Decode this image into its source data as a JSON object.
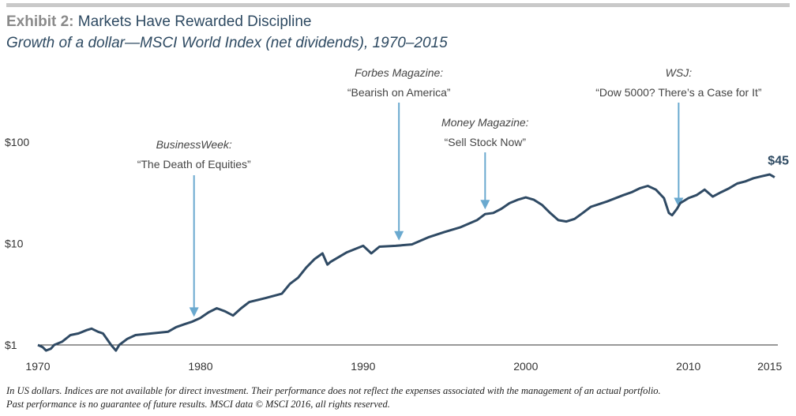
{
  "header": {
    "exhibit_label": "Exhibit 2:",
    "title": "Markets Have Rewarded Discipline",
    "subtitle": "Growth of a dollar—MSCI World Index (net dividends), 1970–2015"
  },
  "footnotes": [
    "In US dollars. Indices are not available for direct investment. Their performance does not reflect the expenses associated with the management of an actual portfolio.",
    "Past performance is no guarantee of future results. MSCI data © MSCI 2016, all rights reserved."
  ],
  "colors": {
    "line": "#2f4a64",
    "arrow": "#6aa9cf",
    "axis": "#333333",
    "endlabel": "#2e4a62"
  },
  "chart_data": {
    "type": "line",
    "title": "Growth of a dollar—MSCI World Index (net dividends), 1970–2015",
    "xlabel": "",
    "ylabel": "",
    "y_scale": "log",
    "ylim": [
      1,
      100
    ],
    "xlim": [
      1970,
      2015.5
    ],
    "x_ticks": [
      1970,
      1980,
      1990,
      2000,
      2010,
      2015
    ],
    "y_ticks": [
      {
        "value": 1,
        "label": "$1"
      },
      {
        "value": 10,
        "label": "$10"
      },
      {
        "value": 100,
        "label": "$100"
      }
    ],
    "grid": false,
    "series": [
      {
        "x": [
          1970,
          1970.3,
          1970.5,
          1970.8,
          1971,
          1971.5,
          1972,
          1972.5,
          1973,
          1973.3,
          1973.7,
          1974,
          1974.5,
          1974.8,
          1975,
          1975.5,
          1976,
          1977,
          1978,
          1978.5,
          1979,
          1979.5,
          1980,
          1980.5,
          1981,
          1981.5,
          1982,
          1982.5,
          1983,
          1984,
          1985,
          1985.5,
          1986,
          1986.5,
          1987,
          1987.5,
          1987.8,
          1988,
          1989,
          1990,
          1990.5,
          1991,
          1992,
          1993,
          1994,
          1995,
          1996,
          1997,
          1997.5,
          1998,
          1998.5,
          1999,
          1999.5,
          2000,
          2000.5,
          2001,
          2001.5,
          2002,
          2002.5,
          2003,
          2003.5,
          2004,
          2005,
          2006,
          2006.5,
          2007,
          2007.5,
          2008,
          2008.5,
          2008.8,
          2009,
          2009.3,
          2009.5,
          2010,
          2010.5,
          2011,
          2011.5,
          2012,
          2012.5,
          2013,
          2013.5,
          2014,
          2014.5,
          2015,
          2015.3
        ],
        "values": [
          1.0,
          0.95,
          0.88,
          0.92,
          1.0,
          1.08,
          1.25,
          1.3,
          1.4,
          1.45,
          1.35,
          1.3,
          1.0,
          0.88,
          1.0,
          1.15,
          1.25,
          1.3,
          1.35,
          1.5,
          1.6,
          1.7,
          1.85,
          2.1,
          2.3,
          2.15,
          1.95,
          2.3,
          2.65,
          2.9,
          3.2,
          4.0,
          4.6,
          5.8,
          7.0,
          8.0,
          6.2,
          6.6,
          8.2,
          9.5,
          8.0,
          9.3,
          9.5,
          9.8,
          11.5,
          13.0,
          14.5,
          17.0,
          19.5,
          20.0,
          22.0,
          25.0,
          27.0,
          28.5,
          27.0,
          24.0,
          20.0,
          17.0,
          16.5,
          17.5,
          20.0,
          23.0,
          26.0,
          30.0,
          32.0,
          35.0,
          37.0,
          34.0,
          28.0,
          20.0,
          19.0,
          22.0,
          25.0,
          28.0,
          30.0,
          34.0,
          29.0,
          32.0,
          35.0,
          39.0,
          41.0,
          44.0,
          46.0,
          48.0,
          45.0
        ]
      }
    ],
    "end_label": "$45",
    "annotations": [
      {
        "source": "BusinessWeek",
        "headline": "“The Death of Equities”",
        "x": 1979.6,
        "y": 1.7
      },
      {
        "source": "Forbes Magazine",
        "headline": "“Bearish on America”",
        "x": 1992.2,
        "y": 9.6
      },
      {
        "source": "Money Magazine",
        "headline": "“Sell Stock Now”",
        "x": 1997.5,
        "y": 19.5
      },
      {
        "source": "WSJ",
        "headline": "“Dow 5000? There’s a Case for It”",
        "x": 2009.4,
        "y": 20.5
      }
    ]
  }
}
